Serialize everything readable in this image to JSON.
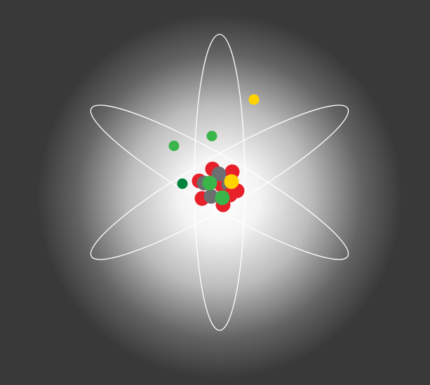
{
  "illustration": {
    "subject": "atom-diagram",
    "colors": {
      "background": "#3a3939",
      "glow_center": "#ffffff",
      "orbit_stroke": "#ffffff",
      "proton": "#e8202a",
      "neutron": "#6d6e70",
      "green_particle": "#3ab54a",
      "dark_green_particle": "#00843d",
      "yellow_particle": "#ffd200"
    },
    "orbits": [
      {
        "name": "orbit-vertical",
        "rotation_deg": 0
      },
      {
        "name": "orbit-diagonal-down",
        "rotation_deg": 30
      },
      {
        "name": "orbit-diagonal-up",
        "rotation_deg": -30
      }
    ],
    "electrons": [
      {
        "name": "electron-yellow",
        "color_key": "yellow_particle"
      },
      {
        "name": "electron-green-upper",
        "color_key": "green_particle"
      },
      {
        "name": "electron-green-left",
        "color_key": "green_particle"
      },
      {
        "name": "electron-dark-green",
        "color_key": "dark_green_particle"
      }
    ],
    "nucleus_particles": [
      {
        "name": "nucleus-proton",
        "color_key": "proton"
      },
      {
        "name": "nucleus-proton",
        "color_key": "proton"
      },
      {
        "name": "nucleus-proton",
        "color_key": "proton"
      },
      {
        "name": "nucleus-proton",
        "color_key": "proton"
      },
      {
        "name": "nucleus-proton",
        "color_key": "proton"
      },
      {
        "name": "nucleus-proton",
        "color_key": "proton"
      },
      {
        "name": "nucleus-proton",
        "color_key": "proton"
      },
      {
        "name": "nucleus-neutron",
        "color_key": "neutron"
      },
      {
        "name": "nucleus-neutron",
        "color_key": "neutron"
      },
      {
        "name": "nucleus-neutron",
        "color_key": "neutron"
      },
      {
        "name": "nucleus-neutron",
        "color_key": "neutron"
      },
      {
        "name": "nucleus-proton",
        "color_key": "proton"
      },
      {
        "name": "nucleus-green",
        "color_key": "green_particle"
      },
      {
        "name": "nucleus-green",
        "color_key": "green_particle"
      },
      {
        "name": "nucleus-yellow",
        "color_key": "yellow_particle"
      }
    ]
  }
}
